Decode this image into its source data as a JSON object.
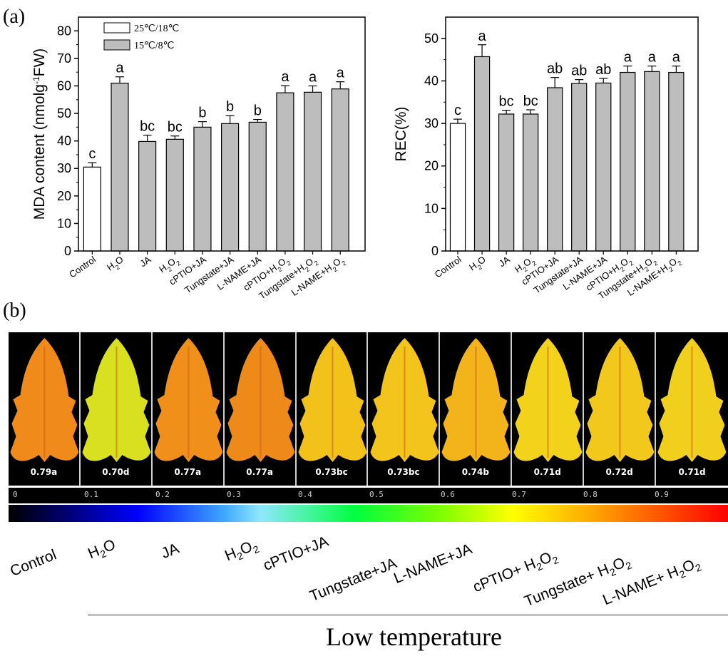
{
  "panel_a_label": "(a)",
  "panel_b_label": "(b)",
  "chart_data": [
    {
      "type": "bar",
      "categories": [
        "Control",
        "H2O",
        "JA",
        "H2O2",
        "cPTIO+JA",
        "Tungstate+JA",
        "L-NAME+JA",
        "cPTIO+H2O2",
        "Tungstate+H2O2",
        "L-NAME+H2O2"
      ],
      "series": [
        {
          "name": "25℃/18℃",
          "fill": "#ffffff"
        },
        {
          "name": "15℃/8℃",
          "fill": "#bdbdbd"
        }
      ],
      "values": [
        30.5,
        61,
        39.8,
        40.6,
        45,
        46.3,
        46.8,
        57.5,
        57.7,
        58.9
      ],
      "errors": [
        1.6,
        2.3,
        2.3,
        1.2,
        2.0,
        2.9,
        1.0,
        2.6,
        2.3,
        2.6
      ],
      "letters": [
        "c",
        "a",
        "bc",
        "bc",
        "b",
        "b",
        "b",
        "a",
        "a",
        "a"
      ],
      "ylabel": "MDA content (nmolg-1FW)",
      "ylim": [
        0,
        85
      ],
      "yticks": [
        0,
        10,
        20,
        30,
        40,
        50,
        60,
        70,
        80
      ]
    },
    {
      "type": "bar",
      "categories": [
        "Control",
        "H2O",
        "JA",
        "H2O2",
        "cPTIO+JA",
        "Tungstate+JA",
        "L-NAME+JA",
        "cPTIO+H2O2",
        "Tungstate+H2O2",
        "L-NAME+H2O2"
      ],
      "values": [
        30,
        45.7,
        32.2,
        32.2,
        38.4,
        39.4,
        39.5,
        42,
        42.2,
        42
      ],
      "errors": [
        1.0,
        2.8,
        0.9,
        1.0,
        2.4,
        0.9,
        1.1,
        1.5,
        1.3,
        1.5
      ],
      "letters": [
        "c",
        "a",
        "bc",
        "bc",
        "ab",
        "ab",
        "ab",
        "a",
        "a",
        "a"
      ],
      "ylabel": "REC(%)",
      "ylim": [
        0,
        55
      ],
      "yticks": [
        0,
        10,
        20,
        30,
        40,
        50
      ]
    }
  ],
  "leaves": [
    {
      "value": "0.79a",
      "color": "#f08a1a"
    },
    {
      "value": "0.70d",
      "color": "#d8e020"
    },
    {
      "value": "0.77a",
      "color": "#f0901a"
    },
    {
      "value": "0.77a",
      "color": "#ee8a1a"
    },
    {
      "value": "0.73bc",
      "color": "#f2c21a"
    },
    {
      "value": "0.73bc",
      "color": "#f2c41c"
    },
    {
      "value": "0.74b",
      "color": "#f2b41a"
    },
    {
      "value": "0.71d",
      "color": "#f3d21c"
    },
    {
      "value": "0.72d",
      "color": "#f3c81c"
    },
    {
      "value": "0.71d",
      "color": "#f0d01c"
    }
  ],
  "scale_ticks": [
    "0",
    "0.1",
    "0.2",
    "0.3",
    "0.4",
    "0.5",
    "0.6",
    "0.7",
    "0.8",
    "0.9"
  ],
  "treatment_labels": [
    {
      "base": "Control",
      "parts": [
        [
          "Control",
          ""
        ]
      ]
    },
    {
      "base": "H2O",
      "parts": [
        [
          "H",
          ""
        ],
        [
          "2",
          "sub"
        ],
        [
          "O",
          ""
        ]
      ]
    },
    {
      "base": "JA",
      "parts": [
        [
          "JA",
          ""
        ]
      ]
    },
    {
      "base": "H2O2",
      "parts": [
        [
          "H",
          ""
        ],
        [
          "2",
          "sub"
        ],
        [
          "O",
          ""
        ],
        [
          "2",
          "sub"
        ]
      ]
    },
    {
      "base": "cPTIO+JA",
      "parts": [
        [
          "cPTIO+JA",
          ""
        ]
      ]
    },
    {
      "base": "Tungstate+JA",
      "parts": [
        [
          "Tungstate+JA",
          ""
        ]
      ]
    },
    {
      "base": "L-NAME+JA",
      "parts": [
        [
          "L-NAME+JA",
          ""
        ]
      ]
    },
    {
      "base": "cPTIO+ H2O2",
      "parts": [
        [
          "cPTIO+ H",
          ""
        ],
        [
          "2",
          "sub"
        ],
        [
          "O",
          ""
        ],
        [
          "2",
          "sub"
        ]
      ]
    },
    {
      "base": "Tungstate+ H2O2",
      "parts": [
        [
          "Tungstate+ H",
          ""
        ],
        [
          "2",
          "sub"
        ],
        [
          "O",
          ""
        ],
        [
          "2",
          "sub"
        ]
      ]
    },
    {
      "base": "L-NAME+ H2O2",
      "parts": [
        [
          "L-NAME+ H",
          ""
        ],
        [
          "2",
          "sub"
        ],
        [
          "O",
          ""
        ],
        [
          "2",
          "sub"
        ]
      ]
    }
  ],
  "bottom_title": "Low temperature"
}
